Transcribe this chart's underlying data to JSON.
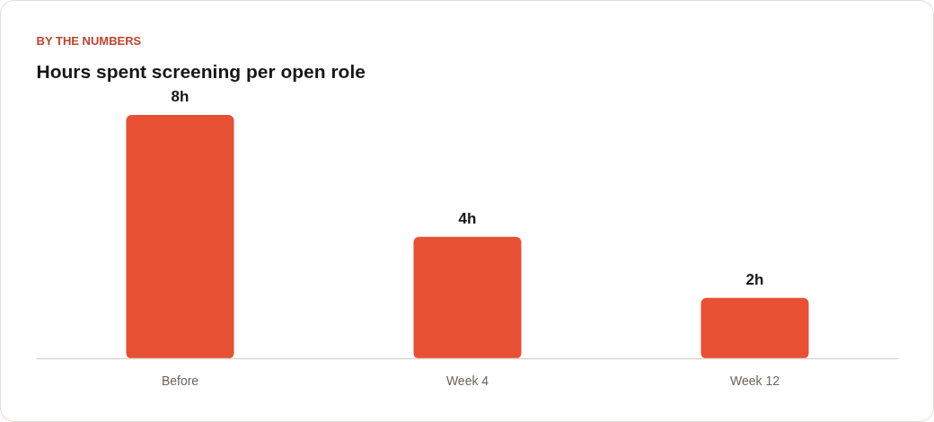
{
  "chart_data": {
    "type": "bar",
    "subtitle": "BY THE NUMBERS",
    "title": "Hours spent screening per open role",
    "categories": [
      "Before",
      "Week 4",
      "Week 12"
    ],
    "values": [
      8,
      4,
      2
    ],
    "value_labels": [
      "8h",
      "4h",
      "2h"
    ],
    "color": "#e85034",
    "tick_labels": "x",
    "grid": false
  }
}
